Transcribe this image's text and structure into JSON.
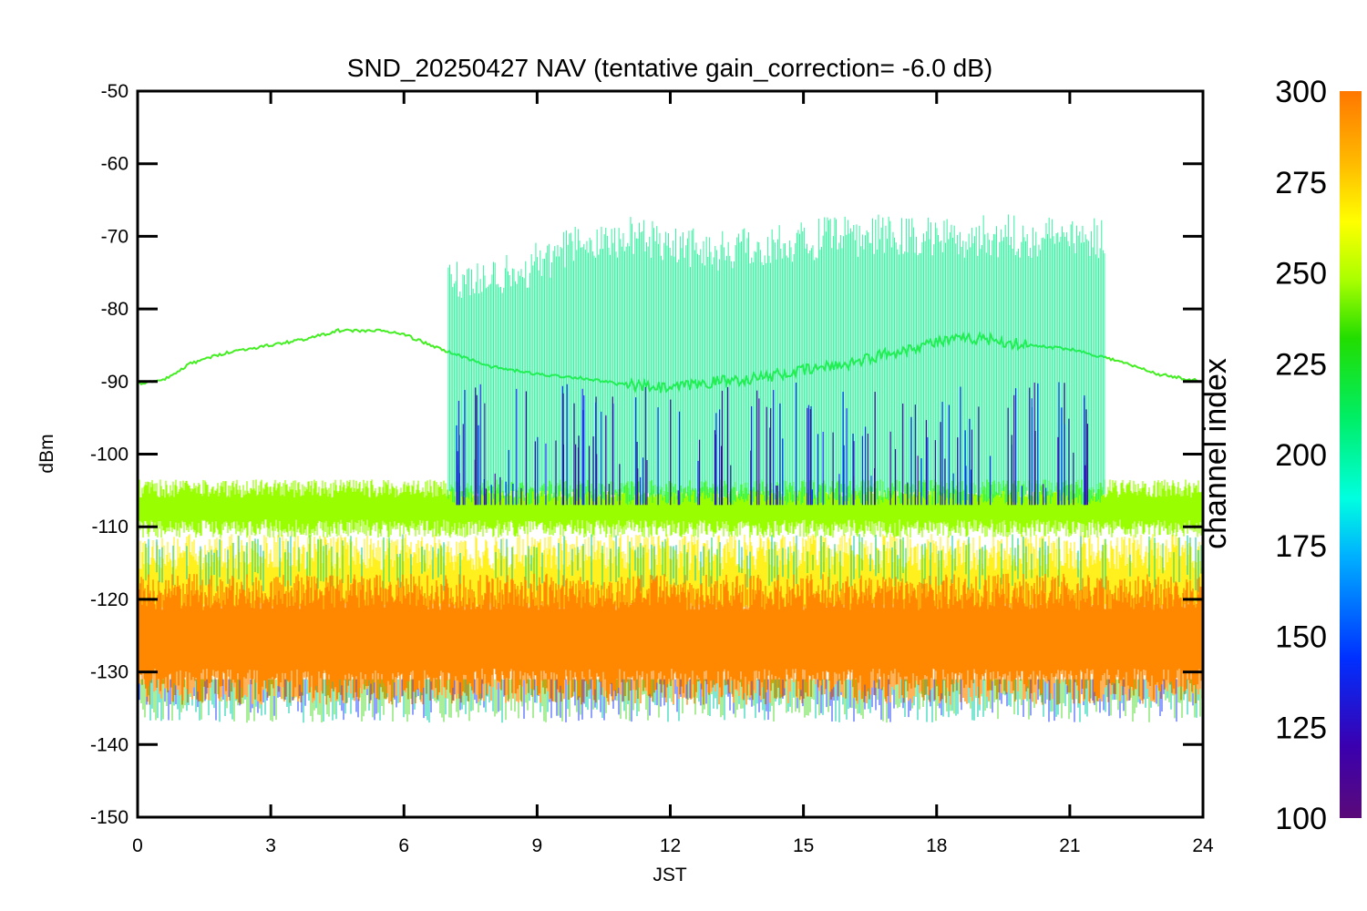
{
  "chart_data": {
    "type": "scatter",
    "title": "SND_20250427 NAV (tentative gain_correction= -6.0 dB)",
    "xlabel": "JST",
    "ylabel": "dBm",
    "xlim": [
      0,
      24
    ],
    "ylim": [
      -150,
      -50
    ],
    "x_ticks": [
      "0",
      "3",
      "6",
      "9",
      "12",
      "15",
      "18",
      "21",
      "24"
    ],
    "y_ticks": [
      "-50",
      "-60",
      "-70",
      "-80",
      "-90",
      "-100",
      "-110",
      "-120",
      "-130",
      "-140",
      "-150"
    ],
    "grid": false,
    "colorbar": {
      "label": "channel index",
      "range": [
        100,
        300
      ],
      "ticks": [
        "300",
        "275",
        "250",
        "225",
        "200",
        "175",
        "150",
        "125",
        "100"
      ],
      "colormap": "rainbow (purple-blue-cyan-green-yellow-orange)"
    },
    "series": [
      {
        "color": "#ff8800",
        "channel_index": 300,
        "x": [
          0,
          3,
          6,
          9,
          12,
          15,
          18,
          21,
          24
        ],
        "y": [
          -125.5,
          -125.5,
          -125.5,
          -125.5,
          -125.5,
          -125.5,
          -125.5,
          -125.5,
          -125.5
        ]
      },
      {
        "color": "#99ff00",
        "channel_index": 258,
        "x": [
          0,
          3,
          6,
          9,
          12,
          15,
          18,
          21,
          24
        ],
        "y": [
          -107.5,
          -107.5,
          -107.5,
          -107.5,
          -107.5,
          -107.5,
          -107.5,
          -107.5,
          -107.5
        ]
      },
      {
        "color": "#44ee22",
        "channel_index": 238,
        "x": [
          0,
          0.6,
          1.2,
          2,
          3,
          3.9,
          4.5,
          5.5,
          6,
          6.8,
          8,
          9,
          10,
          11,
          12,
          13,
          14,
          15,
          16,
          17,
          18,
          19,
          20,
          21,
          22,
          23,
          24
        ],
        "y": [
          -90.3,
          -89.8,
          -87.5,
          -86.0,
          -85.0,
          -84.0,
          -83.0,
          -83.0,
          -83.5,
          -85.5,
          -88.0,
          -89.0,
          -89.5,
          -90.5,
          -91.0,
          -90.0,
          -89.5,
          -88.5,
          -87.5,
          -86.0,
          -84.5,
          -84.0,
          -85.0,
          -85.5,
          -87.0,
          -89.0,
          -90.0
        ]
      },
      {
        "color": "#00ee88",
        "channel_index": 205,
        "x": [
          7.0,
          8.5,
          10.0,
          11.5,
          13.0,
          14.5,
          16.0,
          17.5,
          19.0,
          20.5,
          21.8
        ],
        "y": [
          -79.0,
          -78.0,
          -74.0,
          -73.0,
          -75.0,
          -74.0,
          -73.0,
          -73.0,
          -73.0,
          -73.0,
          -73.0
        ]
      }
    ]
  }
}
